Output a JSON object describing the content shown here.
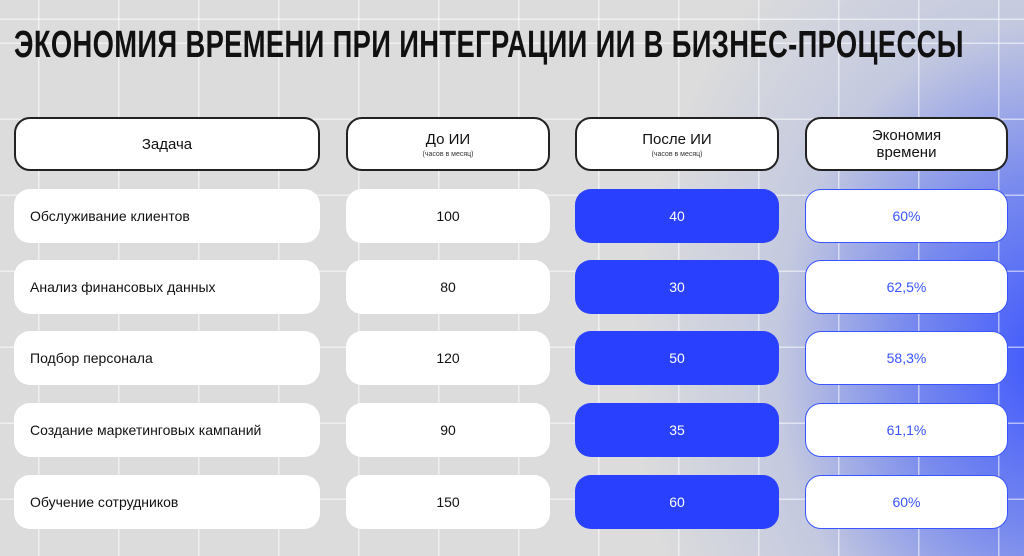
{
  "title": "ЭКОНОМИЯ ВРЕМЕНИ ПРИ ИНТЕГРАЦИИ ИИ В БИЗНЕС-ПРОЦЕССЫ",
  "colors": {
    "accent": "#2a40ff",
    "savings_text": "#3a55ff",
    "background": "#dcdcdc"
  },
  "headers": [
    {
      "label": "Задача",
      "sub": ""
    },
    {
      "label": "До ИИ",
      "sub": "(часов в месяц)"
    },
    {
      "label": "После ИИ",
      "sub": "(часов в месяц)"
    },
    {
      "label": "Экономия времени",
      "sub": ""
    }
  ],
  "rows": [
    {
      "task": "Обслуживание клиентов",
      "before": "100",
      "after": "40",
      "savings": "60%"
    },
    {
      "task": "Анализ финансовых данных",
      "before": "80",
      "after": "30",
      "savings": "62,5%"
    },
    {
      "task": "Подбор персонала",
      "before": "120",
      "after": "50",
      "savings": "58,3%"
    },
    {
      "task": "Создание маркетинговых кампаний",
      "before": "90",
      "after": "35",
      "savings": "61,1%"
    },
    {
      "task": "Обучение сотрудников",
      "before": "150",
      "after": "60",
      "savings": "60%"
    }
  ]
}
